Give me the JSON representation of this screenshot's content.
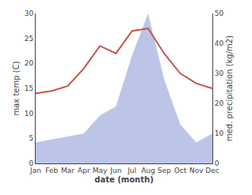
{
  "chart_data": {
    "type": "line",
    "categories": [
      "Jan",
      "Feb",
      "Mar",
      "Apr",
      "May",
      "Jun",
      "Jul",
      "Aug",
      "Sep",
      "Oct",
      "Nov",
      "Dec"
    ],
    "series": [
      {
        "type": "area",
        "axis": "y2",
        "color": "#bcc5e8",
        "values": [
          7.0,
          8.0,
          9.0,
          10.0,
          16.0,
          19.0,
          36.0,
          50.0,
          28.0,
          13.0,
          7.0,
          10.0
        ]
      },
      {
        "type": "line",
        "color": "#c8524a",
        "values": [
          14.0,
          14.5,
          15.5,
          19.0,
          23.5,
          22.0,
          26.5,
          27.0,
          22.0,
          18.0,
          16.0,
          15.0
        ]
      }
    ],
    "xlabel": "date (month)",
    "ylabel": "max temp (C)",
    "y2label": "med. precipitation (kg/m2)",
    "ylim": [
      0,
      30
    ],
    "yticks": [
      0,
      5,
      10,
      15,
      20,
      25,
      30
    ],
    "y2lim": [
      0,
      50
    ],
    "y2ticks": [
      0,
      10,
      20,
      30,
      40,
      50
    ],
    "grid": false
  }
}
